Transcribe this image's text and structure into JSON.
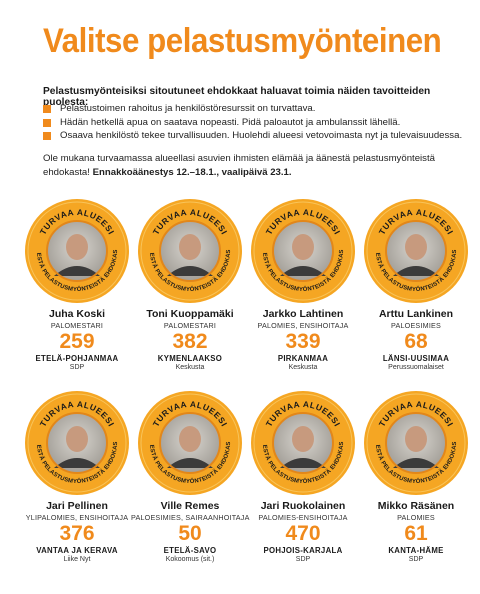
{
  "title": "Valitse pelastusmyönteinen",
  "intro": "Pelastusmyönteisiksi sitoutuneet ehdokkaat haluavat toimia näiden tavoitteiden puolesta:",
  "goals": [
    "Pelastustoimen rahoitus ja henkilöstöresurssit on turvattava.",
    "Hädän hetkellä apua on saatava nopeasti. Pidä paloautot ja ambulanssit lähellä.",
    "Osaava henkilöstö tekee turvallisuuden. Huolehdi alueesi vetovoimasta nyt ja tulevaisuudessa."
  ],
  "cta": {
    "text": "Ole mukana turvaamassa alueellasi asuvien ihmisten elämää ja äänestä pelastusmyönteistä ehdokasta!",
    "bold": "Ennakkoäänestys 12.–18.1., vaalipäivä 23.1."
  },
  "badge": {
    "top": "TURVAA ALUEESI",
    "bottom": "ÄÄNESTÄ PELASTUSMYÖNTEISTÄ EHDOKASTA!"
  },
  "colors": {
    "accent": "#f08a1c",
    "badge_ring": "#f5a623",
    "text": "#1a1a1a"
  },
  "candidates": [
    {
      "name": "Juha Koski",
      "role": "PALOMESTARI",
      "number": "259",
      "district": "ETELÄ-POHJANMAA",
      "party": "SDP"
    },
    {
      "name": "Toni Kuoppamäki",
      "role": "PALOMESTARI",
      "number": "382",
      "district": "KYMENLAAKSO",
      "party": "Keskusta"
    },
    {
      "name": "Jarkko Lahtinen",
      "role": "PALOMIES, ENSIHOITAJA",
      "number": "339",
      "district": "PIRKANMAA",
      "party": "Keskusta"
    },
    {
      "name": "Arttu Lankinen",
      "role": "PALOESIMIES",
      "number": "68",
      "district": "LÄNSI-UUSIMAA",
      "party": "Perussuomalaiset"
    },
    {
      "name": "Jari Pellinen",
      "role": "YLIPALOMIES, ENSIHOITAJA",
      "number": "376",
      "district": "VANTAA JA KERAVA",
      "party": "Liike Nyt"
    },
    {
      "name": "Ville Remes",
      "role": "PALOESIMIES, SAIRAANHOITAJA",
      "number": "50",
      "district": "ETELÄ-SAVO",
      "party": "Kokoomus (sit.)"
    },
    {
      "name": "Jari Ruokolainen",
      "role": "PALOMIES-ENSIHOITAJA",
      "number": "470",
      "district": "POHJOIS-KARJALA",
      "party": "SDP"
    },
    {
      "name": "Mikko Räsänen",
      "role": "PALOMIES",
      "number": "61",
      "district": "KANTA-HÄME",
      "party": "SDP"
    }
  ]
}
